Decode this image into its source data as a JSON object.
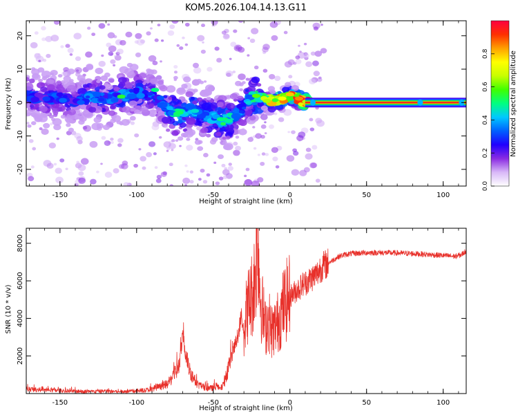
{
  "figure_title": "KOM5.2026.104.14.13.G11",
  "chart_data": [
    {
      "type": "heatmap",
      "title": "",
      "xlabel": "Height of straight line (km)",
      "ylabel": "Frequency (Hz)",
      "xlim": [
        -172,
        115
      ],
      "ylim": [
        -25,
        24.5
      ],
      "xticks": [
        -150,
        -100,
        -50,
        0,
        50,
        100
      ],
      "yticks": [
        -20,
        -10,
        0,
        10,
        20
      ],
      "colorbar": {
        "label": "Normalized spectral amplitude",
        "range": [
          0,
          1
        ],
        "ticks": [
          0.0,
          0.2,
          0.4,
          0.6,
          0.8
        ],
        "colormap": [
          "#ffffff",
          "#d8b8f8",
          "#8a2be2",
          "#2000ff",
          "#0060ff",
          "#00c8ff",
          "#00ff80",
          "#40ff00",
          "#c8ff00",
          "#ffff00",
          "#ffa000",
          "#ff3000",
          "#ff0040"
        ]
      },
      "ridge": {
        "x": [
          -172,
          -160,
          -150,
          -140,
          -130,
          -120,
          -110,
          -100,
          -92,
          -85,
          -80,
          -75,
          -70,
          -65,
          -60,
          -55,
          -50,
          -45,
          -40,
          -35,
          -30,
          -26,
          -22,
          -18,
          -12,
          -5,
          0,
          5,
          10,
          115
        ],
        "freq": [
          2,
          1,
          1.5,
          0.5,
          2,
          1,
          2,
          3,
          2,
          1,
          -2,
          -3,
          -3,
          -2,
          -3,
          -4,
          -4.5,
          -5.5,
          -5,
          -3.5,
          -1,
          1.5,
          2,
          1,
          0.5,
          1,
          2.5,
          1,
          0,
          0
        ],
        "amplitude": [
          0.3,
          0.25,
          0.3,
          0.25,
          0.35,
          0.3,
          0.35,
          0.35,
          0.3,
          0.3,
          0.35,
          0.45,
          0.4,
          0.4,
          0.35,
          0.35,
          0.4,
          0.45,
          0.45,
          0.35,
          0.3,
          0.45,
          0.55,
          0.6,
          0.7,
          0.75,
          0.8,
          0.8,
          0.9,
          0.95
        ]
      }
    },
    {
      "type": "line",
      "title": "",
      "xlabel": "Height of straight line (km)",
      "ylabel": "SNR (10 * v/v)",
      "xlim": [
        -172,
        115
      ],
      "ylim": [
        0,
        8800
      ],
      "xticks": [
        -150,
        -100,
        -50,
        0,
        50,
        100
      ],
      "yticks": [
        2000,
        4000,
        6000,
        8000
      ],
      "color": "#e8302a",
      "series": [
        {
          "name": "SNR",
          "x": [
            -172,
            -160,
            -150,
            -140,
            -130,
            -120,
            -110,
            -100,
            -92,
            -85,
            -80,
            -76,
            -72,
            -70,
            -68,
            -66,
            -64,
            -62,
            -60,
            -58,
            -56,
            -54,
            -52,
            -50,
            -48,
            -46,
            -44,
            -42,
            -40,
            -38,
            -36,
            -34,
            -32,
            -30,
            -28,
            -26,
            -24,
            -22,
            -21,
            -20,
            -19,
            -18,
            -16,
            -14,
            -12,
            -10,
            -8,
            -6,
            -4,
            -2,
            0,
            2,
            4,
            6,
            8,
            10,
            12,
            15,
            18,
            20,
            24,
            28,
            32,
            36,
            40,
            50,
            60,
            70,
            80,
            90,
            100,
            108,
            112,
            115
          ],
          "y": [
            250,
            180,
            150,
            120,
            100,
            130,
            100,
            140,
            200,
            350,
            500,
            900,
            1600,
            3000,
            2200,
            1400,
            1000,
            700,
            500,
            400,
            350,
            300,
            280,
            300,
            400,
            250,
            350,
            800,
            1500,
            2000,
            2500,
            3000,
            4000,
            3500,
            4500,
            5000,
            5500,
            7000,
            8700,
            6500,
            5000,
            4500,
            3500,
            4000,
            3300,
            3500,
            3800,
            4200,
            4700,
            5000,
            5200,
            5300,
            5500,
            5600,
            5800,
            5900,
            6000,
            6200,
            6400,
            6700,
            6900,
            7100,
            7300,
            7400,
            7450,
            7500,
            7500,
            7480,
            7450,
            7400,
            7350,
            7300,
            7400,
            7600
          ]
        }
      ]
    }
  ]
}
